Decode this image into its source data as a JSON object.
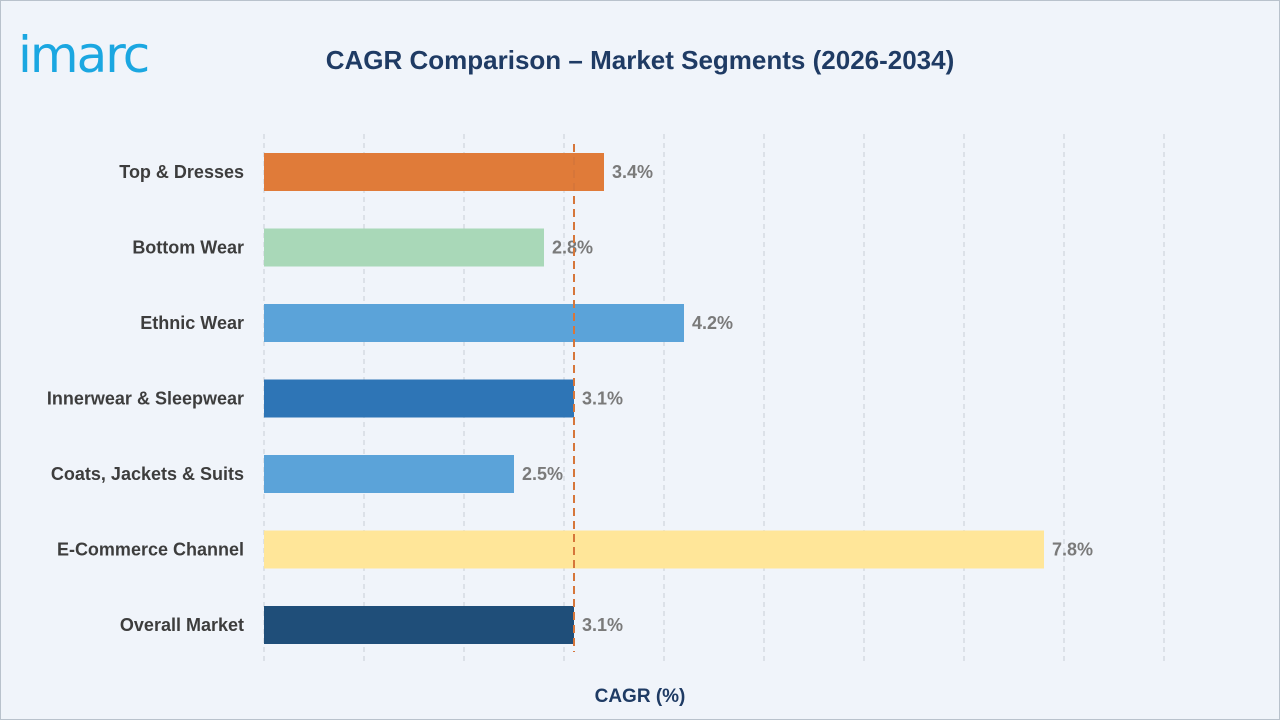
{
  "logo": {
    "text": "imarc",
    "color": "#1ba7e1"
  },
  "chart_data": {
    "type": "bar",
    "orientation": "horizontal",
    "title": "CAGR Comparison – Market Segments (2026-2034)",
    "xlabel": "CAGR (%)",
    "ylabel": "",
    "xlim": [
      0,
      9
    ],
    "grid": true,
    "reference_line": {
      "value": 3.1,
      "color": "#d6763a",
      "style": "dashed"
    },
    "categories": [
      "Top & Dresses",
      "Bottom Wear",
      "Ethnic Wear",
      "Innerwear & Sleepwear",
      "Coats, Jackets & Suits",
      "E-Commerce Channel",
      "Overall Market"
    ],
    "values": [
      3.4,
      2.8,
      4.2,
      3.1,
      2.5,
      7.8,
      3.1
    ],
    "value_labels": [
      "3.4%",
      "2.8%",
      "4.2%",
      "3.1%",
      "2.5%",
      "7.8%",
      "3.1%"
    ],
    "colors": [
      "#e07b39",
      "#a9d8b8",
      "#5ba3d9",
      "#2e75b6",
      "#5ba3d9",
      "#ffe699",
      "#1f4e79"
    ]
  }
}
